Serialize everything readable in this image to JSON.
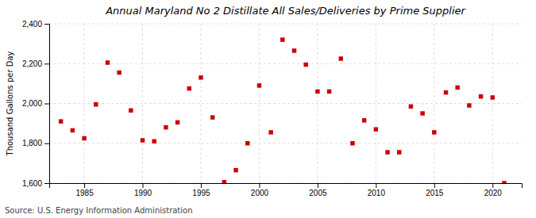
{
  "chart_data": {
    "type": "scatter",
    "title": "Annual Maryland No 2 Distillate All Sales/Deliveries by Prime Supplier",
    "ylabel": "Thousand Gallons per Day",
    "annotations": [
      "Source: U.S. Energy Information Administration"
    ],
    "color": "#cc0000",
    "marker": "square",
    "grid": true,
    "x": [
      1983,
      1984,
      1985,
      1986,
      1987,
      1988,
      1989,
      1990,
      1991,
      1992,
      1993,
      1994,
      1995,
      1996,
      1997,
      1998,
      1999,
      2000,
      2001,
      2002,
      2003,
      2004,
      2005,
      2006,
      2007,
      2008,
      2009,
      2010,
      2011,
      2012,
      2013,
      2014,
      2015,
      2016,
      2017,
      2018,
      2019,
      2020,
      2021
    ],
    "values": [
      1910,
      1865,
      1825,
      1995,
      2205,
      2155,
      1965,
      1815,
      1810,
      1880,
      1905,
      2075,
      2130,
      1930,
      1605,
      1665,
      1800,
      2090,
      1855,
      2320,
      2265,
      2195,
      2060,
      2060,
      2225,
      1800,
      1915,
      1870,
      1755,
      1755,
      1985,
      1950,
      1855,
      2055,
      2080,
      1990,
      2035,
      2030,
      1600
    ],
    "xlim": [
      1982,
      2022.5
    ],
    "xticks": [
      1985,
      1990,
      1995,
      2000,
      2005,
      2010,
      2015,
      2020
    ],
    "ylim": [
      1600,
      2400
    ],
    "yticks": [
      {
        "value": 1600,
        "label": "1,600"
      },
      {
        "value": 1800,
        "label": "1,800"
      },
      {
        "value": 2000,
        "label": "2,000"
      },
      {
        "value": 2200,
        "label": "2,200"
      },
      {
        "value": 2400,
        "label": "2,400"
      }
    ]
  }
}
